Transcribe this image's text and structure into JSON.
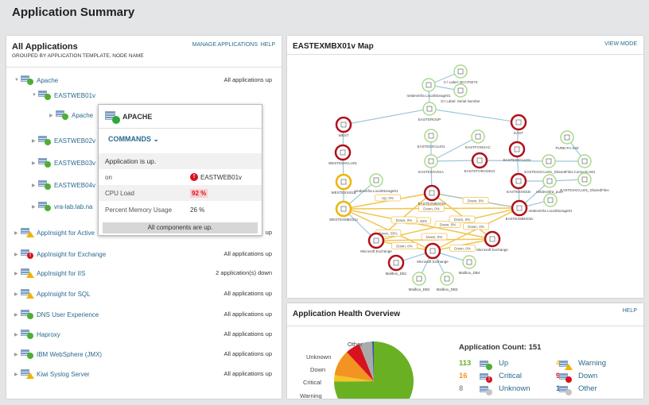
{
  "page_title": "Application Summary",
  "all_apps": {
    "title": "All Applications",
    "subtitle": "GROUPED BY APPLICATION TEMPLATE, NODE NAME",
    "manage": "MANAGE APPLICATIONS",
    "help": "HELP",
    "rows": [
      {
        "label": "Apache",
        "status": "All applications up",
        "icon": "up",
        "expanded": true,
        "level": 0
      },
      {
        "label": "EASTWEB01v",
        "status": "",
        "icon": "up",
        "expanded": true,
        "level": 1
      },
      {
        "label": "Apache",
        "status": "",
        "icon": "up",
        "expanded": false,
        "level": 2
      },
      {
        "label": "EASTWEB02v",
        "status": "",
        "icon": "up",
        "expanded": false,
        "level": 1
      },
      {
        "label": "EASTWEB03v",
        "status": "",
        "icon": "up",
        "expanded": false,
        "level": 1
      },
      {
        "label": "EASTWEB04v",
        "status": "",
        "icon": "up",
        "expanded": false,
        "level": 1
      },
      {
        "label": "vra-lab.lab.na",
        "status": "",
        "icon": "up",
        "expanded": false,
        "level": 1
      },
      {
        "label": "AppInsight for Active",
        "status": "up",
        "icon": "warning",
        "expanded": false,
        "level": 0
      },
      {
        "label": "AppInsight for Exchange",
        "status": "All applications up",
        "icon": "critical",
        "expanded": false,
        "level": 0
      },
      {
        "label": "AppInsight for IIS",
        "status": "2 application(s) down",
        "icon": "warning",
        "expanded": false,
        "level": 0
      },
      {
        "label": "AppInsight for SQL",
        "status": "All applications up",
        "icon": "warning",
        "expanded": false,
        "level": 0
      },
      {
        "label": "DNS User Experience",
        "status": "All applications up",
        "icon": "up",
        "expanded": false,
        "level": 0
      },
      {
        "label": "Haproxy",
        "status": "All applications up",
        "icon": "up",
        "expanded": false,
        "level": 0
      },
      {
        "label": "IBM WebSphere (JMX)",
        "status": "All applications up",
        "icon": "up",
        "expanded": false,
        "level": 0
      },
      {
        "label": "Kiwi Syslog Server",
        "status": "All applications up",
        "icon": "warning",
        "expanded": false,
        "level": 0
      }
    ]
  },
  "popup": {
    "title": "APACHE",
    "commands": "COMMANDS",
    "app_status": "Application is up.",
    "on_label": "on",
    "on_value": "EASTWEB01v",
    "cpu_label": "CPU Load",
    "cpu_value": "92 %",
    "mem_label": "Percent Memory Usage",
    "mem_value": "26 %",
    "components": "All components are up."
  },
  "map": {
    "title": "EASTEXMBX01v Map",
    "view_mode": "VIEW MODE",
    "nodes": [
      {
        "label": "netdevinfra LocalStorage01",
        "status": "up"
      },
      {
        "label": "C:\\ Label: BCCF8273",
        "status": "up"
      },
      {
        "label": "D:\\ Label: Serial Number",
        "status": "up"
      },
      {
        "label": "EASTGROUP",
        "status": "up"
      },
      {
        "label": "WEST",
        "status": "down"
      },
      {
        "label": "WESTESXCLU01",
        "status": "down"
      },
      {
        "label": "EASTESXCLU01",
        "status": "up"
      },
      {
        "label": "EASTFVS01AC",
        "status": "up"
      },
      {
        "label": "EASTESXV01A",
        "status": "up"
      },
      {
        "label": "EASTSTORAGE01",
        "status": "down"
      },
      {
        "label": "EAST",
        "status": "down"
      },
      {
        "label": "EASTESXCLU01",
        "status": "down"
      },
      {
        "label": "PURE-FA-X20",
        "status": "up"
      },
      {
        "label": "Compute.001",
        "status": "up"
      },
      {
        "label": "EASTESXCLU01_SharedFiles",
        "status": "up"
      },
      {
        "label": "EASTESXI01B",
        "status": "down"
      },
      {
        "label": "netdevinfra_pure",
        "status": "up"
      },
      {
        "label": "EASTESXCLU01_SharedFiles",
        "status": "up"
      },
      {
        "label": "netdevinfra LocalStorage01",
        "status": "up"
      },
      {
        "label": "EASTEXMBX02v",
        "status": "down"
      },
      {
        "label": "WESTESXI01B",
        "status": "warning"
      },
      {
        "label": "netdevinfra LocalStorage01",
        "status": "up"
      },
      {
        "label": "EASTEXMBX01v",
        "status": "down"
      },
      {
        "label": "WESTEXMBX01v",
        "status": "warning"
      },
      {
        "label": "Microsoft Exchange",
        "status": "down"
      },
      {
        "label": "Microsoft Exchange",
        "status": "down"
      },
      {
        "label": "Microsoft Exchange",
        "status": "down"
      },
      {
        "label": "Mailbox_DB1",
        "status": "down"
      },
      {
        "label": "Mailbox_DB4",
        "status": "up"
      },
      {
        "label": "Mailbox_DB2",
        "status": "up"
      },
      {
        "label": "Mailbox_DB3",
        "status": "up"
      }
    ],
    "edges": [
      [
        0,
        1
      ],
      [
        0,
        2
      ],
      [
        0,
        3
      ],
      [
        3,
        4
      ],
      [
        3,
        10
      ],
      [
        4,
        5
      ],
      [
        5,
        20
      ],
      [
        6,
        8
      ],
      [
        8,
        7
      ],
      [
        8,
        9
      ],
      [
        10,
        11
      ],
      [
        11,
        15
      ],
      [
        12,
        13
      ],
      [
        13,
        14
      ],
      [
        14,
        9
      ],
      [
        15,
        16
      ],
      [
        17,
        16
      ],
      [
        15,
        19
      ],
      [
        18,
        19
      ],
      [
        16,
        19
      ],
      [
        20,
        23
      ],
      [
        21,
        23
      ],
      [
        8,
        22
      ],
      [
        26,
        27
      ],
      [
        26,
        28
      ],
      [
        26,
        29
      ],
      [
        26,
        30
      ],
      [
        24,
        23
      ],
      [
        19,
        22
      ]
    ],
    "links": [
      {
        "from": 23,
        "to": 22,
        "label": "Up, 0%"
      },
      {
        "from": 23,
        "to": 19,
        "label": "Down, 0%"
      },
      {
        "from": 23,
        "to": 26,
        "label": "Down, 33%"
      },
      {
        "from": 23,
        "to": 25,
        "label": "Down, 45%"
      },
      {
        "from": 22,
        "to": 19,
        "label": "Down, 0%"
      },
      {
        "from": 22,
        "to": 24,
        "label": "Down, 0%"
      },
      {
        "from": 24,
        "to": 25,
        "label": "Down, 0%"
      },
      {
        "from": 24,
        "to": 26,
        "label": "Down, 0%"
      },
      {
        "from": 25,
        "to": 26,
        "label": "Down, 0%"
      },
      {
        "from": 19,
        "to": 26,
        "label": "Down, 0%"
      },
      {
        "from": 19,
        "to": 24,
        "label": "Down, 0%"
      },
      {
        "from": 22,
        "to": 25,
        "label": "Down, 0%"
      }
    ]
  },
  "health": {
    "title": "Application Health Overview",
    "help": "HELP",
    "count_label": "Application Count: 151",
    "colors": {
      "up": "#6ab023",
      "warning": "#f7c325",
      "critical": "#f39321",
      "down": "#d9121f",
      "unknown": "#aaaaaa",
      "other": "#2a5ca8"
    },
    "chart_data": {
      "type": "pie",
      "categories": [
        "Up",
        "Warning",
        "Critical",
        "Down",
        "Unknown",
        "Other"
      ],
      "values": [
        113,
        4,
        16,
        9,
        8,
        1
      ]
    },
    "legend": [
      {
        "count": "113",
        "label": "Up",
        "key": "up"
      },
      {
        "count": "4",
        "label": "Warning",
        "key": "warning"
      },
      {
        "count": "16",
        "label": "Critical",
        "key": "critical"
      },
      {
        "count": "9",
        "label": "Down",
        "key": "down"
      },
      {
        "count": "8",
        "label": "Unknown",
        "key": "unknown"
      },
      {
        "count": "1",
        "label": "Other",
        "key": "other"
      }
    ]
  }
}
